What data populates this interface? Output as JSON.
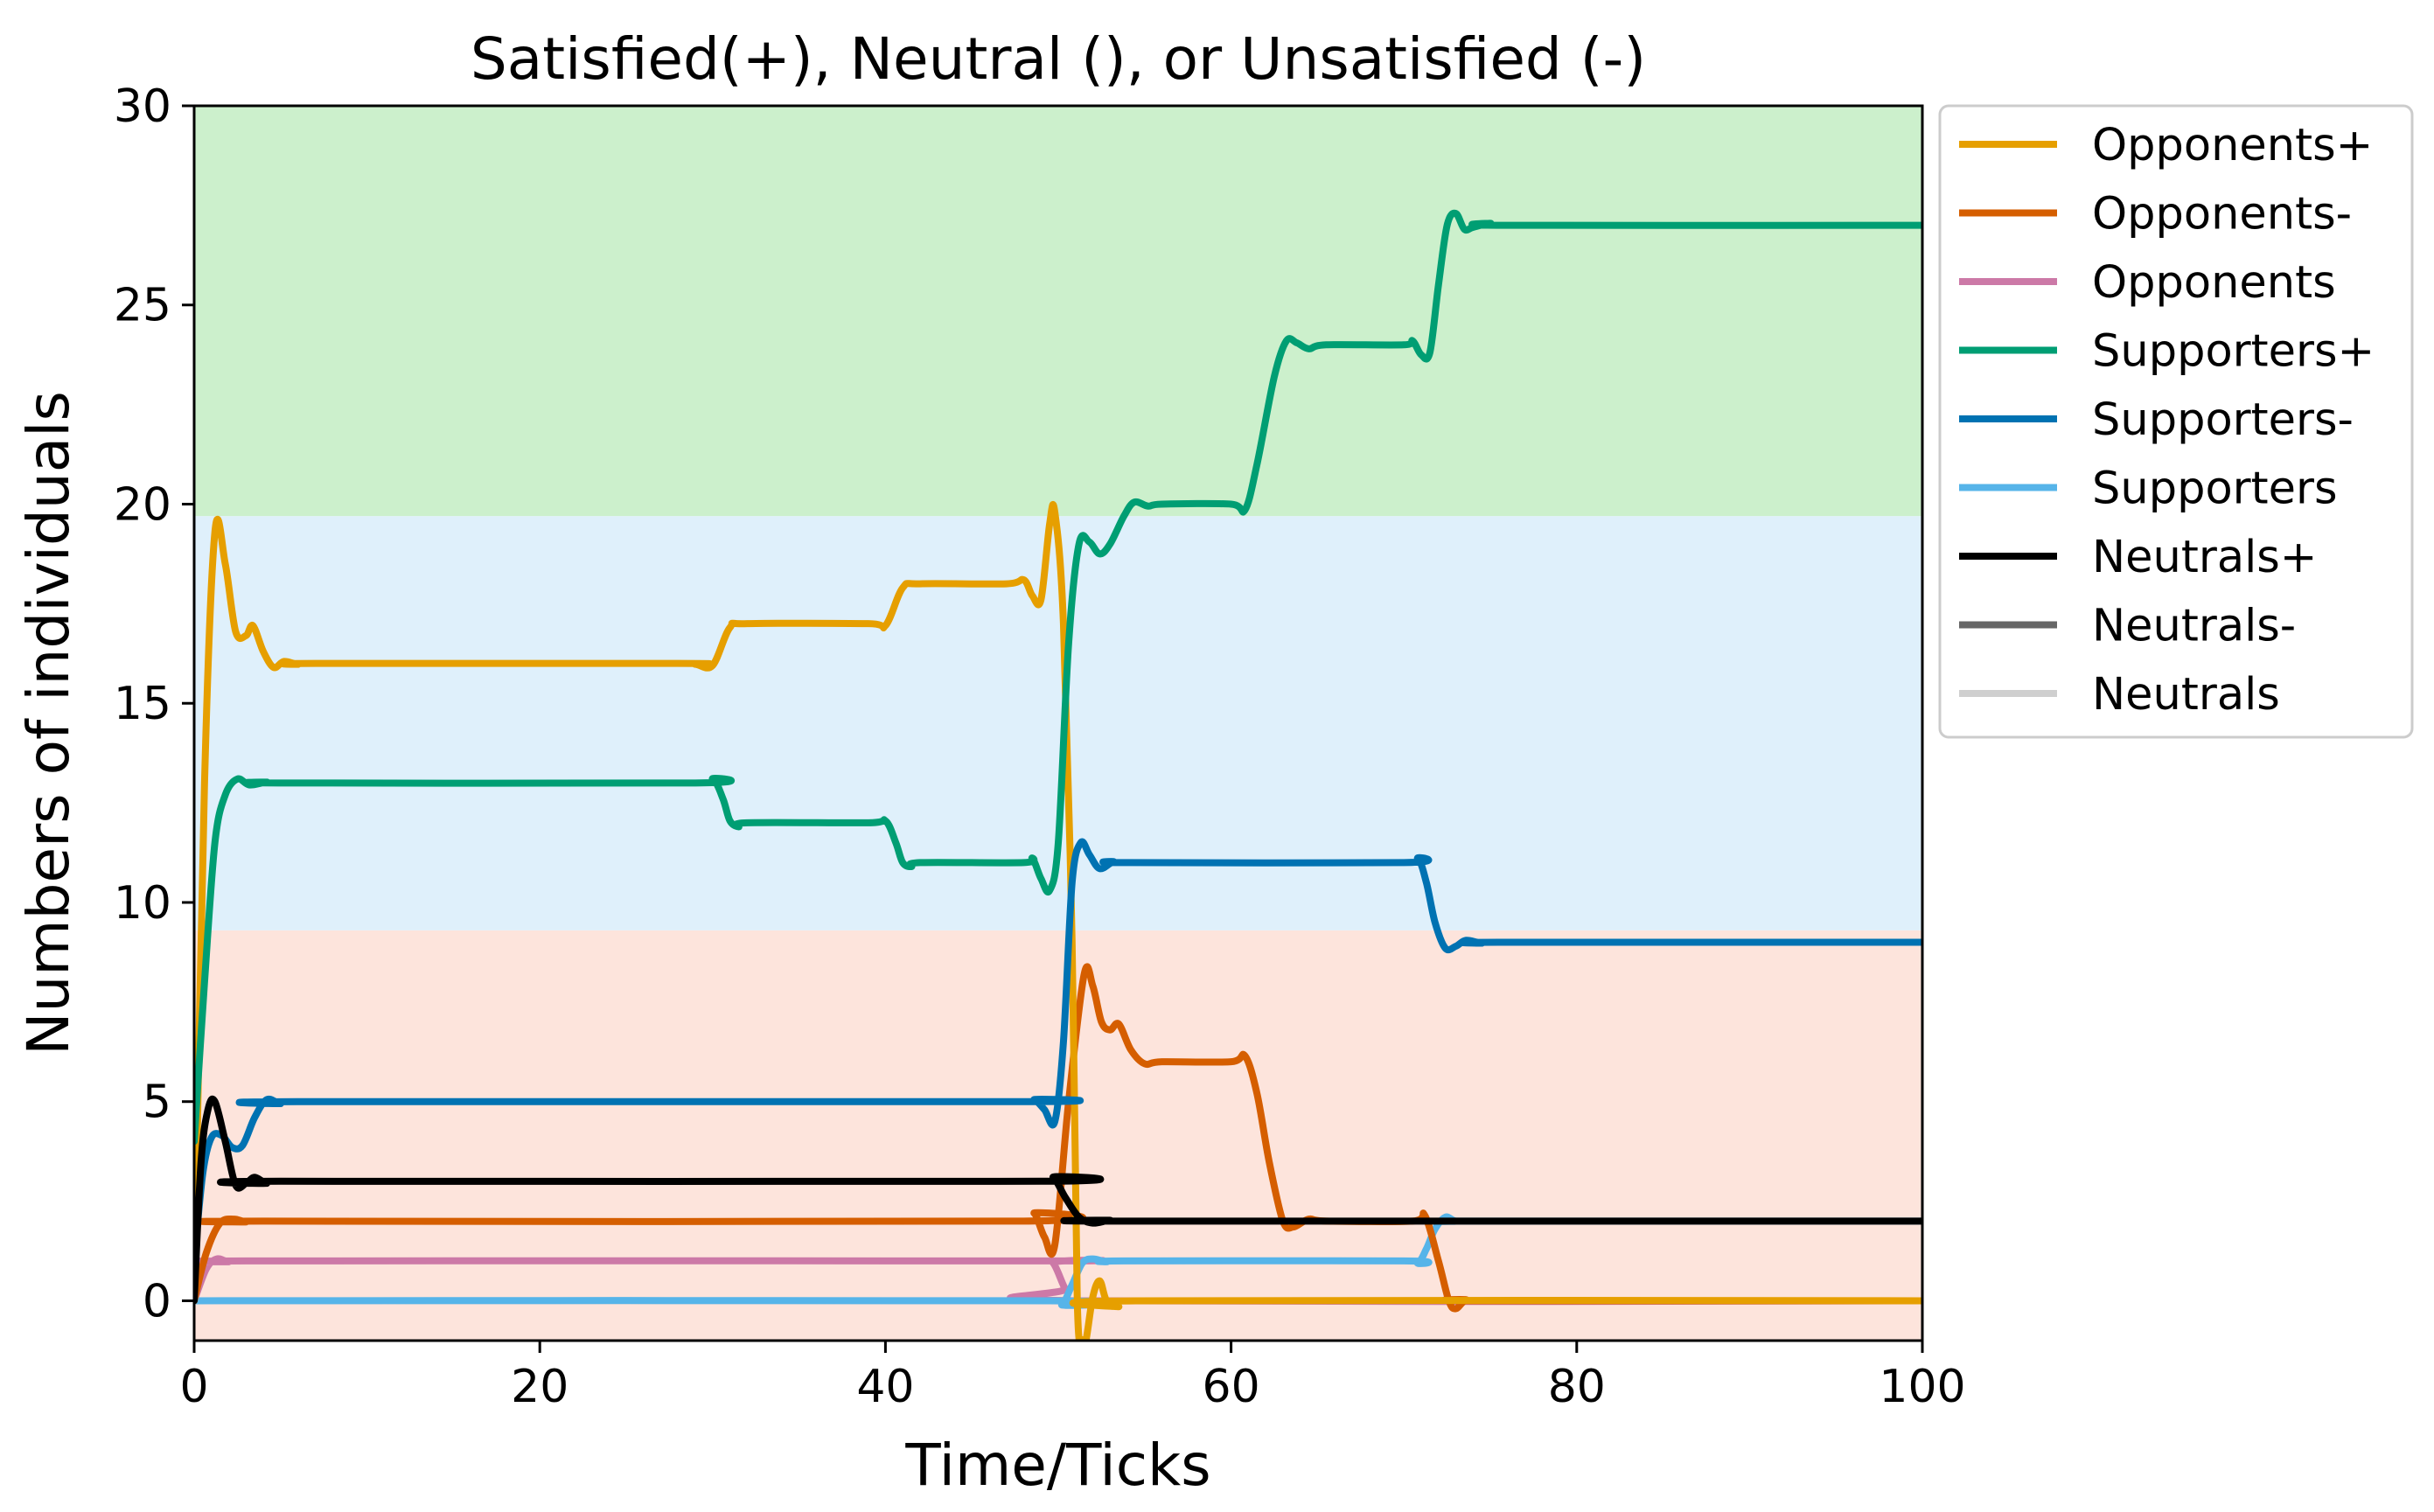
{
  "chart_data": {
    "type": "line",
    "title": "Satisfied(+), Neutral (), or Unsatisfied (-)",
    "xlabel": "Time/Ticks",
    "ylabel": "Numbers of individuals",
    "xlim": [
      0,
      100
    ],
    "ylim": [
      -1,
      30
    ],
    "xticks": [
      "0",
      "20",
      "40",
      "60",
      "80",
      "100"
    ],
    "yticks": [
      "0",
      "5",
      "10",
      "15",
      "20",
      "25",
      "30"
    ],
    "grid": false,
    "legend_position": "outside-right-top",
    "background_bands": [
      {
        "from": -1,
        "to": 9.3,
        "color": "#fde4dc"
      },
      {
        "from": 9.3,
        "to": 19.7,
        "color": "#dff0fb"
      },
      {
        "from": 19.7,
        "to": 30,
        "color": "#ccf0cc"
      }
    ],
    "series": [
      {
        "name": "Opponents+",
        "color": "#e69f00",
        "points": [
          [
            0,
            0
          ],
          [
            0.6,
            13
          ],
          [
            1.2,
            19.3
          ],
          [
            1.8,
            18.5
          ],
          [
            2.4,
            16.8
          ],
          [
            3.0,
            16.7
          ],
          [
            3.4,
            16.95
          ],
          [
            4.0,
            16.3
          ],
          [
            4.6,
            15.9
          ],
          [
            5.2,
            16.05
          ],
          [
            6,
            15.98
          ],
          [
            7,
            16
          ],
          [
            28,
            16
          ],
          [
            29,
            15.98
          ],
          [
            30,
            15.95
          ],
          [
            31,
            16.9
          ],
          [
            32,
            17
          ],
          [
            39,
            17
          ],
          [
            40,
            16.95
          ],
          [
            41,
            17.9
          ],
          [
            42,
            18
          ],
          [
            47,
            18
          ],
          [
            48,
            18.1
          ],
          [
            48.5,
            17.7
          ],
          [
            49,
            17.6
          ],
          [
            49.5,
            19.5
          ],
          [
            49.8,
            19.8
          ],
          [
            50.3,
            17
          ],
          [
            50.8,
            9
          ],
          [
            51.1,
            0
          ],
          [
            51.4,
            -1
          ],
          [
            51.6,
            -1
          ],
          [
            52.0,
            0.1
          ],
          [
            52.4,
            0.5
          ],
          [
            52.8,
            0
          ],
          [
            53.5,
            -0.15
          ],
          [
            54.5,
            0
          ],
          [
            100,
            0
          ]
        ]
      },
      {
        "name": "Opponents-",
        "color": "#d55e00",
        "points": [
          [
            0,
            0
          ],
          [
            0.7,
            1.2
          ],
          [
            1.5,
            1.95
          ],
          [
            2.3,
            2.05
          ],
          [
            3.0,
            1.98
          ],
          [
            4,
            2
          ],
          [
            48,
            2
          ],
          [
            48.6,
            2.2
          ],
          [
            49.2,
            1.6
          ],
          [
            49.8,
            1.4
          ],
          [
            50.6,
            5
          ],
          [
            51.5,
            8.2
          ],
          [
            52.0,
            7.9
          ],
          [
            52.5,
            7.0
          ],
          [
            53.0,
            6.8
          ],
          [
            53.5,
            6.95
          ],
          [
            54.2,
            6.3
          ],
          [
            55,
            5.95
          ],
          [
            56,
            6
          ],
          [
            60,
            6
          ],
          [
            60.8,
            6.15
          ],
          [
            61.5,
            5.2
          ],
          [
            62.2,
            3.5
          ],
          [
            63,
            2
          ],
          [
            63.6,
            1.85
          ],
          [
            64.5,
            2.05
          ],
          [
            65.5,
            2
          ],
          [
            70.5,
            2
          ],
          [
            71.2,
            2.15
          ],
          [
            72,
            1.0
          ],
          [
            72.6,
            0
          ],
          [
            73.0,
            -0.2
          ],
          [
            73.6,
            0.02
          ],
          [
            74.5,
            0
          ],
          [
            100,
            0
          ]
        ]
      },
      {
        "name": "Opponents",
        "color": "#cc79a7",
        "points": [
          [
            0,
            0
          ],
          [
            0.7,
            0.8
          ],
          [
            1.3,
            1.05
          ],
          [
            2,
            0.98
          ],
          [
            3,
            1
          ],
          [
            49,
            1
          ],
          [
            49.7,
            0.95
          ],
          [
            50.4,
            0.3
          ],
          [
            51,
            0
          ],
          [
            100,
            0
          ]
        ]
      },
      {
        "name": "Supporters+",
        "color": "#009e73",
        "points": [
          [
            0,
            4
          ],
          [
            0.6,
            8
          ],
          [
            1.2,
            11.5
          ],
          [
            1.8,
            12.7
          ],
          [
            2.5,
            13.1
          ],
          [
            3.2,
            12.95
          ],
          [
            4.2,
            13.02
          ],
          [
            5,
            13
          ],
          [
            29,
            13
          ],
          [
            30,
            13.1
          ],
          [
            30.6,
            12.6
          ],
          [
            31,
            12.05
          ],
          [
            31.5,
            11.9
          ],
          [
            32,
            12
          ],
          [
            39,
            12
          ],
          [
            40,
            12.05
          ],
          [
            40.6,
            11.5
          ],
          [
            41,
            11.0
          ],
          [
            41.5,
            10.9
          ],
          [
            42,
            11
          ],
          [
            48,
            11
          ],
          [
            48.5,
            11.1
          ],
          [
            49,
            10.6
          ],
          [
            49.5,
            10.3
          ],
          [
            50,
            11.5
          ],
          [
            50.6,
            16.5
          ],
          [
            51.2,
            19.0
          ],
          [
            51.8,
            19.05
          ],
          [
            52.4,
            18.75
          ],
          [
            53,
            19.0
          ],
          [
            53.8,
            19.7
          ],
          [
            54.4,
            20.05
          ],
          [
            55.2,
            19.95
          ],
          [
            56,
            20
          ],
          [
            60,
            20
          ],
          [
            60.8,
            19.85
          ],
          [
            61.5,
            21
          ],
          [
            62.5,
            23.2
          ],
          [
            63.2,
            24.1
          ],
          [
            63.8,
            24.05
          ],
          [
            64.5,
            23.9
          ],
          [
            65.5,
            24
          ],
          [
            70,
            24
          ],
          [
            70.5,
            24.1
          ],
          [
            71,
            23.75
          ],
          [
            71.5,
            23.8
          ],
          [
            72,
            25.5
          ],
          [
            72.5,
            27.0
          ],
          [
            73,
            27.3
          ],
          [
            73.5,
            26.9
          ],
          [
            74,
            26.95
          ],
          [
            75,
            27.05
          ],
          [
            76,
            27
          ],
          [
            100,
            27
          ]
        ]
      },
      {
        "name": "Supporters-",
        "color": "#0072b2",
        "points": [
          [
            0,
            1
          ],
          [
            0.5,
            3.2
          ],
          [
            1.0,
            4.1
          ],
          [
            1.6,
            4.15
          ],
          [
            2.2,
            3.85
          ],
          [
            2.8,
            3.9
          ],
          [
            3.5,
            4.6
          ],
          [
            4.2,
            5.05
          ],
          [
            5,
            4.95
          ],
          [
            6,
            5
          ],
          [
            48,
            5
          ],
          [
            48.6,
            5.05
          ],
          [
            49.2,
            4.8
          ],
          [
            49.8,
            4.5
          ],
          [
            50.3,
            6.5
          ],
          [
            50.8,
            10.5
          ],
          [
            51.3,
            11.5
          ],
          [
            51.8,
            11.2
          ],
          [
            52.4,
            10.85
          ],
          [
            53.2,
            11.02
          ],
          [
            54,
            11
          ],
          [
            70,
            11
          ],
          [
            70.8,
            11.1
          ],
          [
            71.3,
            10.5
          ],
          [
            71.8,
            9.5
          ],
          [
            72.4,
            8.85
          ],
          [
            73,
            8.9
          ],
          [
            73.6,
            9.05
          ],
          [
            74.5,
            8.98
          ],
          [
            75.5,
            9
          ],
          [
            100,
            9
          ]
        ]
      },
      {
        "name": "Supporters",
        "color": "#56b4e9",
        "points": [
          [
            0,
            0
          ],
          [
            49.5,
            0
          ],
          [
            50.2,
            -0.1
          ],
          [
            50.8,
            0.4
          ],
          [
            51.4,
            0.95
          ],
          [
            52.0,
            1.05
          ],
          [
            52.8,
            0.98
          ],
          [
            53.8,
            1
          ],
          [
            70,
            1
          ],
          [
            70.8,
            0.95
          ],
          [
            71.3,
            1.3
          ],
          [
            71.8,
            1.8
          ],
          [
            72.4,
            2.1
          ],
          [
            73,
            2.0
          ],
          [
            74,
            2
          ],
          [
            100,
            2
          ]
        ]
      },
      {
        "name": "Neutrals+",
        "color": "#000000",
        "points": [
          [
            0,
            0
          ],
          [
            0.4,
            3.5
          ],
          [
            0.8,
            4.8
          ],
          [
            1.2,
            5.0
          ],
          [
            1.8,
            4.0
          ],
          [
            2.4,
            2.9
          ],
          [
            3.0,
            2.95
          ],
          [
            3.5,
            3.1
          ],
          [
            4.2,
            2.95
          ],
          [
            5,
            3
          ],
          [
            49,
            3
          ],
          [
            49.7,
            3.1
          ],
          [
            50.4,
            2.6
          ],
          [
            51.2,
            2.1
          ],
          [
            52,
            1.95
          ],
          [
            53,
            2.02
          ],
          [
            54,
            2
          ],
          [
            100,
            2
          ]
        ]
      },
      {
        "name": "Neutrals-",
        "color": "#666666",
        "points": [
          [
            0,
            0
          ],
          [
            100,
            0
          ]
        ]
      },
      {
        "name": "Neutrals",
        "color": "#cfcfcf",
        "points": [
          [
            0,
            0
          ],
          [
            100,
            0
          ]
        ]
      }
    ]
  }
}
